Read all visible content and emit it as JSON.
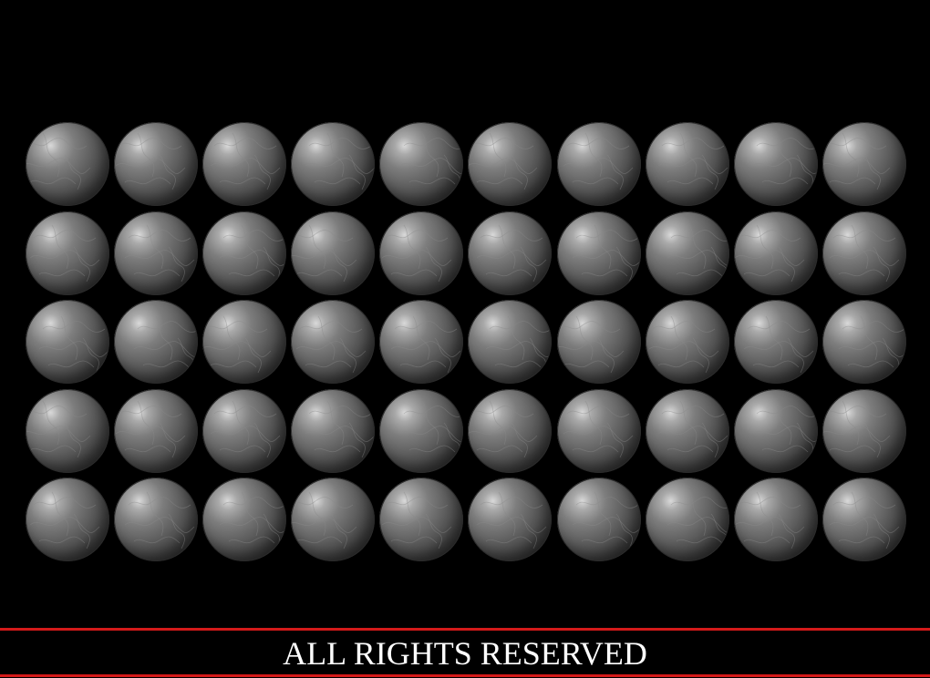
{
  "footer": {
    "text": "ALL RIGHTS RESERVED"
  },
  "globes": {
    "rows": 5,
    "columns": 10,
    "icon": "globe-icon"
  },
  "colors": {
    "background": "#000000",
    "footer_rule": "#d41a1a",
    "footer_text": "#ffffff",
    "globe_base": "#5a5a5a"
  }
}
